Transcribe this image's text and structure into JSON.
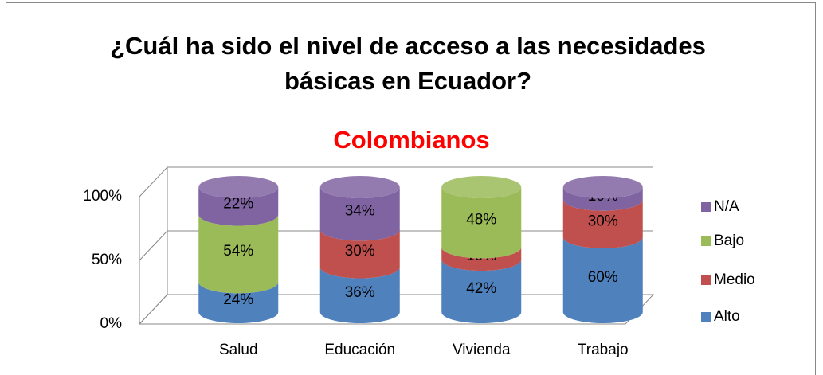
{
  "chart_data": {
    "type": "stacked-cylinder",
    "title": "¿Cuál ha sido el nivel de acceso a las necesidades básicas en Ecuador?",
    "subtitle": "Colombianos",
    "categories": [
      "Salud",
      "Educación",
      "Vivienda",
      "Trabajo"
    ],
    "series": [
      {
        "name": "Alto",
        "color": "#4f81bd",
        "values": [
          24,
          36,
          42,
          60
        ],
        "value_labels": [
          "24%",
          "36%",
          "42%",
          "60%"
        ]
      },
      {
        "name": "Medio",
        "color": "#c0504d",
        "values": [
          0,
          30,
          10,
          30
        ],
        "value_labels": [
          null,
          "30%",
          "10%",
          "30%"
        ]
      },
      {
        "name": "Bajo",
        "color": "#9bbb59",
        "values": [
          54,
          0,
          48,
          0
        ],
        "value_labels": [
          "54%",
          null,
          "48%",
          null
        ]
      },
      {
        "name": "N/A",
        "color": "#8064a2",
        "values": [
          22,
          34,
          0,
          10
        ],
        "value_labels": [
          "22%",
          "34%",
          null,
          "10%"
        ]
      }
    ],
    "ylim": [
      0,
      100
    ],
    "yticks": [
      {
        "value": 0,
        "label": "0%"
      },
      {
        "value": 50,
        "label": "50%"
      },
      {
        "value": 100,
        "label": "100%"
      }
    ],
    "grid": true,
    "legend": "right"
  }
}
